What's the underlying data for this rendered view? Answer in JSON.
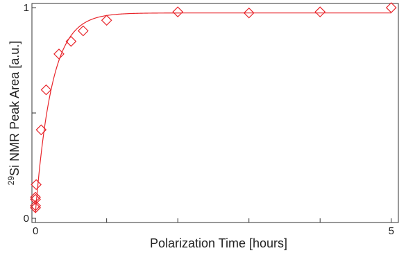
{
  "chart_data": {
    "type": "scatter",
    "title": "",
    "xlabel": "Polarization Time [hours]",
    "ylabel_prefix": "29",
    "ylabel": "Si NMR Peak Area [a.u.]",
    "xlim": [
      -0.05,
      5.1
    ],
    "ylim": [
      -0.02,
      1.02
    ],
    "x_ticks": [
      0,
      1,
      2,
      3,
      4,
      5
    ],
    "x_tick_labels": [
      "0",
      "",
      "",
      "",
      "",
      "5"
    ],
    "y_ticks": [
      0,
      0.5,
      1
    ],
    "y_tick_labels": [
      "0",
      "",
      "1"
    ],
    "grid": false,
    "legend": "none",
    "series": [
      {
        "marker": "diamond",
        "color": "#e8242a",
        "x": [
          0,
          0,
          0,
          0,
          0.01,
          0.08,
          0.15,
          0.33,
          0.5,
          0.67,
          1.0,
          2.0,
          3.0,
          4.0,
          5.0
        ],
        "y": [
          0.05,
          0.06,
          0.09,
          0.1,
          0.16,
          0.42,
          0.61,
          0.78,
          0.84,
          0.89,
          0.94,
          0.98,
          0.975,
          0.98,
          1.0
        ]
      }
    ],
    "fit": {
      "color": "#e8242a",
      "model": "saturation_recovery",
      "A": 0.975,
      "T": 0.23,
      "y0": 0.03
    }
  }
}
